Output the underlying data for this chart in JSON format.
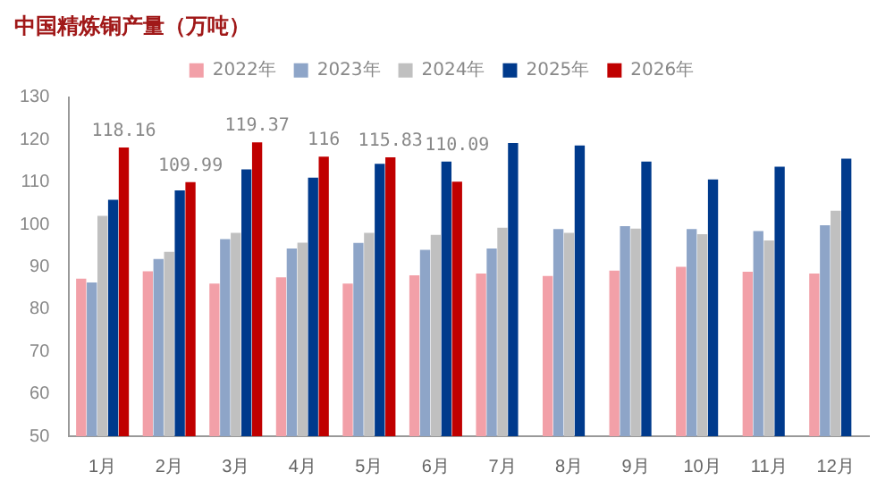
{
  "chart_data": {
    "type": "bar",
    "title": "中国精炼铜产量（万吨）",
    "categories": [
      "1月",
      "2月",
      "3月",
      "4月",
      "5月",
      "6月",
      "7月",
      "8月",
      "9月",
      "10月",
      "11月",
      "12月"
    ],
    "series": [
      {
        "name": "2022年",
        "color": "#f2a0a8",
        "values": [
          87.2,
          88.9,
          86,
          87.5,
          86,
          88,
          88.4,
          87.8,
          89.1,
          90,
          88.8,
          88.4
        ]
      },
      {
        "name": "2023年",
        "color": "#8ea5c8",
        "values": [
          86.3,
          91.8,
          96.5,
          94.3,
          95.6,
          94,
          94.3,
          98.9,
          99.6,
          98.9,
          98.4,
          99.8
        ]
      },
      {
        "name": "2024年",
        "color": "#c0c0c0",
        "values": [
          102,
          93.5,
          98,
          95.7,
          98,
          97.5,
          99.2,
          98,
          99,
          97.7,
          96.2,
          103.2
        ]
      },
      {
        "name": "2025年",
        "color": "#003a8c",
        "values": [
          105.8,
          108,
          113,
          111,
          114.3,
          114.8,
          119.2,
          118.6,
          114.8,
          110.6,
          113.6,
          115.5
        ]
      },
      {
        "name": "2026年",
        "color": "#c00000",
        "values": [
          118.16,
          109.99,
          119.37,
          116,
          115.83,
          110.09,
          null,
          null,
          null,
          null,
          null,
          null
        ],
        "value_labels": [
          "118.16",
          "109.99",
          "119.37",
          "116",
          "115.83",
          "110.09",
          null,
          null,
          null,
          null,
          null,
          null
        ]
      }
    ],
    "ylim": [
      50,
      130
    ],
    "yticks": [
      50,
      60,
      70,
      80,
      90,
      100,
      110,
      120,
      130
    ],
    "grid": false,
    "legend": "top"
  }
}
